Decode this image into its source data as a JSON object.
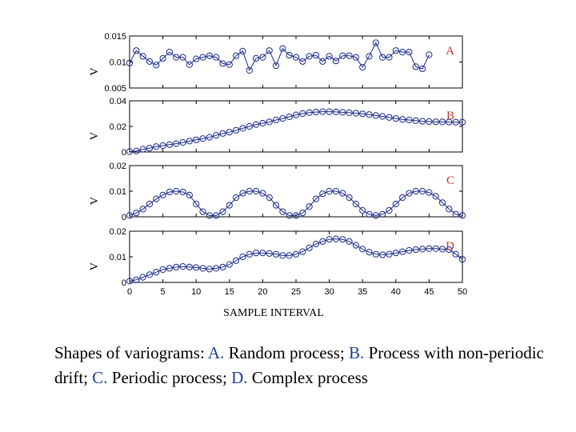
{
  "chart_data": {
    "type": "line",
    "xlabel": "SAMPLE INTERVAL",
    "x_ticks": [
      0,
      5,
      10,
      15,
      20,
      25,
      30,
      35,
      40,
      45,
      50
    ],
    "xlim": [
      0,
      50
    ],
    "marker": "circle",
    "line_color": "#1a2a8c",
    "label_color": "#c0392b",
    "panels": [
      {
        "label": "A",
        "ylabel": "V",
        "ylim": [
          0.005,
          0.015
        ],
        "y_ticks": [
          0.005,
          0.01,
          0.015
        ],
        "y_tick_labels": [
          "0.005",
          "0.01",
          "0.015"
        ],
        "values": [
          0.0098,
          0.0122,
          0.0111,
          0.0101,
          0.0094,
          0.0107,
          0.0119,
          0.0109,
          0.0109,
          0.0095,
          0.0106,
          0.0109,
          0.0112,
          0.0109,
          0.0097,
          0.0095,
          0.0112,
          0.0121,
          0.0084,
          0.0107,
          0.0109,
          0.0122,
          0.0093,
          0.0126,
          0.0113,
          0.0109,
          0.0101,
          0.0111,
          0.0113,
          0.0101,
          0.0111,
          0.0102,
          0.0112,
          0.0112,
          0.0109,
          0.009,
          0.0111,
          0.0137,
          0.0109,
          0.0109,
          0.0122,
          0.0119,
          0.0119,
          0.0091,
          0.0087,
          0.0114
        ]
      },
      {
        "label": "B",
        "ylabel": "V",
        "ylim": [
          0,
          0.04
        ],
        "y_ticks": [
          0,
          0.02,
          0.04
        ],
        "y_tick_labels": [
          "0",
          "0.02",
          "0.04"
        ],
        "values": [
          0.0003,
          0.0008,
          0.0022,
          0.003,
          0.0042,
          0.005,
          0.0058,
          0.0065,
          0.0075,
          0.0085,
          0.0095,
          0.0105,
          0.0115,
          0.013,
          0.0145,
          0.0155,
          0.017,
          0.0185,
          0.02,
          0.0215,
          0.0225,
          0.0235,
          0.025,
          0.0262,
          0.0275,
          0.029,
          0.03,
          0.0308,
          0.0312,
          0.0315,
          0.0315,
          0.0313,
          0.031,
          0.0307,
          0.0303,
          0.0298,
          0.0292,
          0.0285,
          0.0278,
          0.027,
          0.0262,
          0.0255,
          0.025,
          0.0245,
          0.024,
          0.0238,
          0.0236,
          0.0235,
          0.0234,
          0.0233,
          0.0233
        ]
      },
      {
        "label": "C",
        "ylabel": "V",
        "ylim": [
          0,
          0.02
        ],
        "y_ticks": [
          0,
          0.01,
          0.02
        ],
        "y_tick_labels": [
          "0",
          "0.01",
          "0.02"
        ],
        "values": [
          0.0005,
          0.0015,
          0.003,
          0.005,
          0.007,
          0.0085,
          0.0097,
          0.01,
          0.0097,
          0.0085,
          0.005,
          0.002,
          0.0005,
          0.0005,
          0.002,
          0.0045,
          0.0075,
          0.0092,
          0.01,
          0.01,
          0.0092,
          0.0075,
          0.0045,
          0.002,
          0.0005,
          0.0005,
          0.0015,
          0.004,
          0.007,
          0.009,
          0.01,
          0.01,
          0.0092,
          0.0075,
          0.005,
          0.0025,
          0.001,
          0.0005,
          0.001,
          0.0025,
          0.005,
          0.0075,
          0.0092,
          0.01,
          0.01,
          0.0095,
          0.008,
          0.0055,
          0.003,
          0.001,
          0.0005
        ]
      },
      {
        "label": "D",
        "ylabel": "V",
        "ylim": [
          0,
          0.02
        ],
        "y_ticks": [
          0,
          0.01,
          0.02
        ],
        "y_tick_labels": [
          "0",
          "0.01",
          "0.02"
        ],
        "values": [
          0.0005,
          0.001,
          0.002,
          0.003,
          0.004,
          0.005,
          0.0055,
          0.006,
          0.0062,
          0.006,
          0.0058,
          0.0055,
          0.0052,
          0.0055,
          0.006,
          0.007,
          0.0085,
          0.01,
          0.011,
          0.0115,
          0.0115,
          0.0113,
          0.011,
          0.0105,
          0.0105,
          0.011,
          0.012,
          0.0135,
          0.015,
          0.016,
          0.0168,
          0.017,
          0.0168,
          0.016,
          0.0145,
          0.013,
          0.0118,
          0.011,
          0.0108,
          0.011,
          0.0115,
          0.012,
          0.0125,
          0.0128,
          0.013,
          0.0132,
          0.0132,
          0.013,
          0.0128,
          0.011,
          0.009
        ]
      }
    ]
  },
  "caption": {
    "prefix": "Shapes of variograms: ",
    "a_letter": "A.",
    "a_text": " Random process; ",
    "b_letter": "B.",
    "b_text": " Process with non-periodic drift; ",
    "c_letter": "C.",
    "c_text": " Periodic process; ",
    "d_letter": "D.",
    "d_text": " Complex process"
  }
}
